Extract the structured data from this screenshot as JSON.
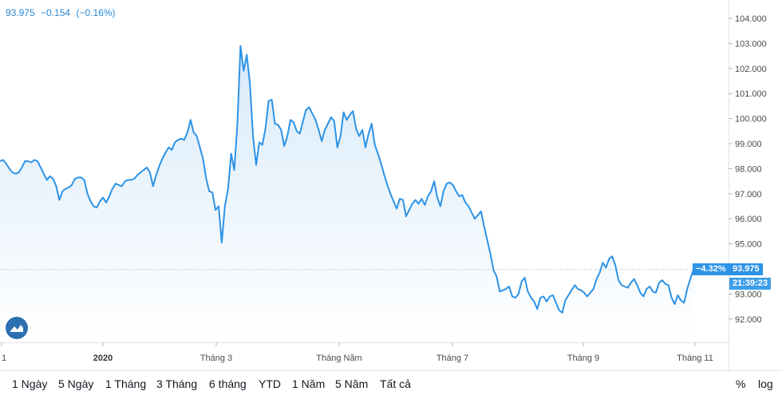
{
  "header": {
    "price": "93.975",
    "change": "−0.154",
    "change_pct": "(−0.16%)"
  },
  "tags": {
    "pct": "−4.32%",
    "price": "93.975",
    "time": "21:39:23"
  },
  "colors": {
    "line": "#2d93e6",
    "fill_top": "#d8eaf9",
    "fill_bottom": "#ffffff",
    "tag_pct": "#2d93e6",
    "tag_price": "#2d93e6",
    "tag_time": "#3d9ee8"
  },
  "range_buttons": [
    "1 Ngày",
    "5 Ngày",
    "1 Tháng",
    "3 Tháng",
    "6 tháng",
    "YTD",
    "1 Năm",
    "5 Năm",
    "Tất cả"
  ],
  "options": {
    "percent": "%",
    "log": "log"
  },
  "icons": {
    "logo": "tradingview-logo-icon"
  },
  "chart_data": {
    "type": "area",
    "title": "",
    "xlabel": "",
    "ylabel": "",
    "ylim": [
      91.0,
      104.5
    ],
    "yticks": [
      "104.000",
      "103.000",
      "102.000",
      "101.000",
      "100.000",
      "99.000",
      "98.000",
      "97.000",
      "96.000",
      "95.000",
      "94.000",
      "93.000",
      "92.000"
    ],
    "yticks_visible": [
      "104.000",
      "103.000",
      "102.000",
      "101.000",
      "100.000",
      "99.000",
      "98.000",
      "97.000",
      "96.000",
      "95.000",
      "93.000",
      "92.000"
    ],
    "xticks": [
      {
        "label": "1",
        "bold": false
      },
      {
        "label": "2020",
        "bold": true
      },
      {
        "label": "Tháng 3",
        "bold": false
      },
      {
        "label": "Tháng Năm",
        "bold": false
      },
      {
        "label": "Tháng 7",
        "bold": false
      },
      {
        "label": "Tháng 9",
        "bold": false
      },
      {
        "label": "Tháng 11",
        "bold": false
      }
    ],
    "last_value": 93.975,
    "series": [
      {
        "values": [
          98.3,
          98.35,
          98.2,
          98.0,
          97.85,
          97.8,
          97.85,
          98.05,
          98.3,
          98.3,
          98.25,
          98.35,
          98.3,
          98.05,
          97.8,
          97.55,
          97.7,
          97.6,
          97.3,
          96.75,
          97.1,
          97.2,
          97.25,
          97.35,
          97.6,
          97.65,
          97.65,
          97.55,
          97.0,
          96.7,
          96.5,
          96.45,
          96.7,
          96.85,
          96.65,
          96.9,
          97.2,
          97.4,
          97.35,
          97.3,
          97.5,
          97.55,
          97.55,
          97.6,
          97.75,
          97.85,
          97.95,
          98.05,
          97.85,
          97.3,
          97.75,
          98.1,
          98.4,
          98.65,
          98.85,
          98.75,
          99.05,
          99.15,
          99.2,
          99.15,
          99.45,
          99.95,
          99.45,
          99.3,
          98.85,
          98.4,
          97.6,
          97.1,
          97.05,
          96.35,
          96.5,
          95.05,
          96.5,
          97.2,
          98.6,
          97.95,
          99.8,
          102.9,
          101.9,
          102.55,
          101.4,
          99.3,
          98.15,
          99.05,
          98.95,
          99.6,
          100.7,
          100.75,
          99.8,
          99.75,
          99.55,
          98.9,
          99.3,
          99.95,
          99.85,
          99.5,
          99.4,
          99.9,
          100.35,
          100.45,
          100.2,
          99.95,
          99.55,
          99.1,
          99.55,
          99.8,
          100.05,
          99.9,
          98.85,
          99.3,
          100.25,
          99.95,
          100.15,
          100.3,
          99.6,
          99.3,
          99.55,
          98.85,
          99.4,
          99.8,
          98.95,
          98.6,
          98.2,
          97.75,
          97.35,
          97.0,
          96.7,
          96.4,
          96.8,
          96.75,
          96.1,
          96.35,
          96.6,
          96.75,
          96.6,
          96.8,
          96.55,
          96.9,
          97.1,
          97.5,
          96.85,
          96.5,
          97.1,
          97.4,
          97.45,
          97.35,
          97.1,
          96.9,
          96.95,
          96.65,
          96.5,
          96.25,
          96.0,
          96.15,
          96.3,
          95.7,
          95.15,
          94.6,
          93.95,
          93.7,
          93.1,
          93.15,
          93.2,
          93.3,
          92.9,
          92.85,
          93.0,
          93.5,
          93.65,
          93.1,
          92.85,
          92.7,
          92.4,
          92.85,
          92.9,
          92.7,
          92.9,
          92.95,
          92.65,
          92.35,
          92.25,
          92.75,
          92.95,
          93.15,
          93.35,
          93.2,
          93.15,
          93.05,
          92.9,
          93.05,
          93.2,
          93.6,
          93.85,
          94.25,
          94.05,
          94.4,
          94.5,
          94.15,
          93.55,
          93.35,
          93.3,
          93.25,
          93.45,
          93.6,
          93.35,
          93.05,
          92.9,
          93.2,
          93.3,
          93.1,
          93.05,
          93.45,
          93.55,
          93.4,
          93.35,
          92.85,
          92.6,
          92.95,
          92.75,
          92.65,
          93.2,
          93.6,
          93.975
        ]
      }
    ]
  }
}
